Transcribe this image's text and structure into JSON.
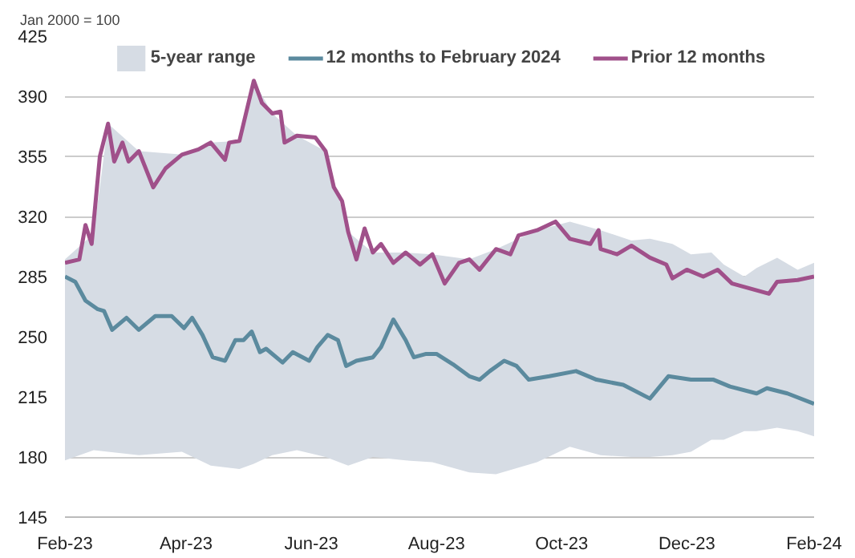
{
  "chart_data": {
    "type": "line",
    "ylabel": "Jan 2000 = 100",
    "xlim": [
      "2023-02-01",
      "2024-02-01"
    ],
    "xticks": [
      {
        "value": "2023-02-01",
        "label": "Feb-23"
      },
      {
        "value": "2023-04-01",
        "label": "Apr-23"
      },
      {
        "value": "2023-06-01",
        "label": "Jun-23"
      },
      {
        "value": "2023-08-01",
        "label": "Aug-23"
      },
      {
        "value": "2023-10-01",
        "label": "Oct-23"
      },
      {
        "value": "2023-12-01",
        "label": "Dec-23"
      },
      {
        "value": "2024-02-01",
        "label": "Feb-24"
      }
    ],
    "ylim": [
      145,
      425
    ],
    "yticks": [
      145,
      180,
      215,
      250,
      285,
      320,
      355,
      390,
      425
    ],
    "grid": "y",
    "legend": "top",
    "series": [
      {
        "name": "5-year range",
        "color": "#d6dce4",
        "x": [
          "2023-02-01",
          "2023-02-15",
          "2023-02-22",
          "2023-03-09",
          "2023-03-30",
          "2023-04-13",
          "2023-04-27",
          "2023-05-04",
          "2023-05-13",
          "2023-05-25",
          "2023-06-08",
          "2023-06-19",
          "2023-07-01",
          "2023-07-17",
          "2023-07-30",
          "2023-08-17",
          "2023-08-30",
          "2023-09-19",
          "2023-10-05",
          "2023-10-20",
          "2023-11-04",
          "2023-11-13",
          "2023-11-24",
          "2023-12-03",
          "2023-12-13",
          "2023-12-19",
          "2023-12-29",
          "2024-01-04",
          "2024-01-14",
          "2024-01-24",
          "2024-02-01"
        ],
        "lower": [
          178,
          184,
          183,
          181,
          183,
          175,
          173,
          176,
          181,
          184,
          180,
          175,
          180,
          178,
          177,
          171,
          170,
          177,
          186,
          181,
          180,
          180,
          181,
          183,
          190,
          190,
          195,
          195,
          197,
          195,
          192
        ],
        "values": [
          null,
          null,
          null,
          null,
          null,
          null,
          null,
          null,
          null,
          null,
          null,
          null,
          null,
          null,
          null,
          null,
          null,
          null,
          null,
          null,
          null,
          null,
          null,
          null,
          null,
          null,
          null,
          null,
          null,
          null,
          null
        ],
        "upper": [
          295,
          310,
          374,
          358,
          356,
          363,
          364,
          399,
          380,
          367,
          358,
          311,
          299,
          299,
          298,
          295,
          301,
          312,
          317,
          312,
          306,
          307,
          304,
          298,
          299,
          292,
          285,
          290,
          296,
          289,
          293
        ]
      },
      {
        "name": "12 months to February 2024",
        "color": "#5b8a9e",
        "x": [
          "2023-02-01",
          "2023-02-06",
          "2023-02-11",
          "2023-02-17",
          "2023-02-20",
          "2023-02-24",
          "2023-03-03",
          "2023-03-09",
          "2023-03-17",
          "2023-03-25",
          "2023-03-31",
          "2023-04-04",
          "2023-04-09",
          "2023-04-14",
          "2023-04-20",
          "2023-04-25",
          "2023-04-29",
          "2023-05-03",
          "2023-05-07",
          "2023-05-10",
          "2023-05-18",
          "2023-05-23",
          "2023-05-31",
          "2023-06-04",
          "2023-06-09",
          "2023-06-14",
          "2023-06-18",
          "2023-06-23",
          "2023-07-01",
          "2023-07-05",
          "2023-07-11",
          "2023-07-17",
          "2023-07-21",
          "2023-07-27",
          "2023-08-01",
          "2023-08-09",
          "2023-08-17",
          "2023-08-22",
          "2023-08-27",
          "2023-09-03",
          "2023-09-09",
          "2023-09-15",
          "2023-09-25",
          "2023-10-08",
          "2023-10-18",
          "2023-10-31",
          "2023-11-13",
          "2023-11-22",
          "2023-12-03",
          "2023-12-14",
          "2023-12-22",
          "2024-01-04",
          "2024-01-09",
          "2024-01-19",
          "2024-02-01"
        ],
        "values": [
          285,
          282,
          271,
          266,
          265,
          254,
          261,
          254,
          262,
          262,
          255,
          261,
          251,
          238,
          236,
          248,
          248,
          253,
          241,
          243,
          235,
          241,
          236,
          244,
          251,
          248,
          233,
          236,
          238,
          244,
          260,
          248,
          238,
          240,
          240,
          234,
          227,
          225,
          230,
          236,
          233,
          225,
          227,
          230,
          225,
          222,
          214,
          227,
          225,
          225,
          221,
          217,
          220,
          217,
          211
        ]
      },
      {
        "name": "Prior 12 months",
        "color": "#a0508a",
        "x": [
          "2023-02-01",
          "2023-02-08",
          "2023-02-11",
          "2023-02-14",
          "2023-02-18",
          "2023-02-22",
          "2023-02-25",
          "2023-03-01",
          "2023-03-04",
          "2023-03-09",
          "2023-03-16",
          "2023-03-22",
          "2023-03-30",
          "2023-04-07",
          "2023-04-13",
          "2023-04-20",
          "2023-04-22",
          "2023-04-27",
          "2023-05-04",
          "2023-05-08",
          "2023-05-13",
          "2023-05-17",
          "2023-05-19",
          "2023-05-25",
          "2023-06-03",
          "2023-06-08",
          "2023-06-12",
          "2023-06-16",
          "2023-06-19",
          "2023-06-23",
          "2023-06-27",
          "2023-07-01",
          "2023-07-05",
          "2023-07-11",
          "2023-07-17",
          "2023-07-24",
          "2023-07-30",
          "2023-08-05",
          "2023-08-12",
          "2023-08-17",
          "2023-08-22",
          "2023-08-30",
          "2023-09-06",
          "2023-09-10",
          "2023-09-19",
          "2023-09-28",
          "2023-10-05",
          "2023-10-15",
          "2023-10-19",
          "2023-10-20",
          "2023-10-28",
          "2023-11-04",
          "2023-11-13",
          "2023-11-21",
          "2023-11-24",
          "2023-12-01",
          "2023-12-09",
          "2023-12-16",
          "2023-12-23",
          "2023-12-29",
          "2024-01-10",
          "2024-01-14",
          "2024-01-24",
          "2024-02-01"
        ],
        "values": [
          293,
          295,
          315,
          304,
          355,
          374,
          352,
          363,
          352,
          358,
          337,
          348,
          356,
          359,
          363,
          353,
          363,
          364,
          399,
          386,
          380,
          381,
          363,
          367,
          366,
          358,
          337,
          329,
          311,
          295,
          313,
          299,
          304,
          293,
          299,
          292,
          298,
          281,
          293,
          295,
          289,
          301,
          298,
          309,
          312,
          317,
          307,
          304,
          312,
          301,
          298,
          303,
          296,
          292,
          284,
          289,
          285,
          289,
          281,
          279,
          275,
          282,
          283,
          285
        ]
      }
    ]
  }
}
